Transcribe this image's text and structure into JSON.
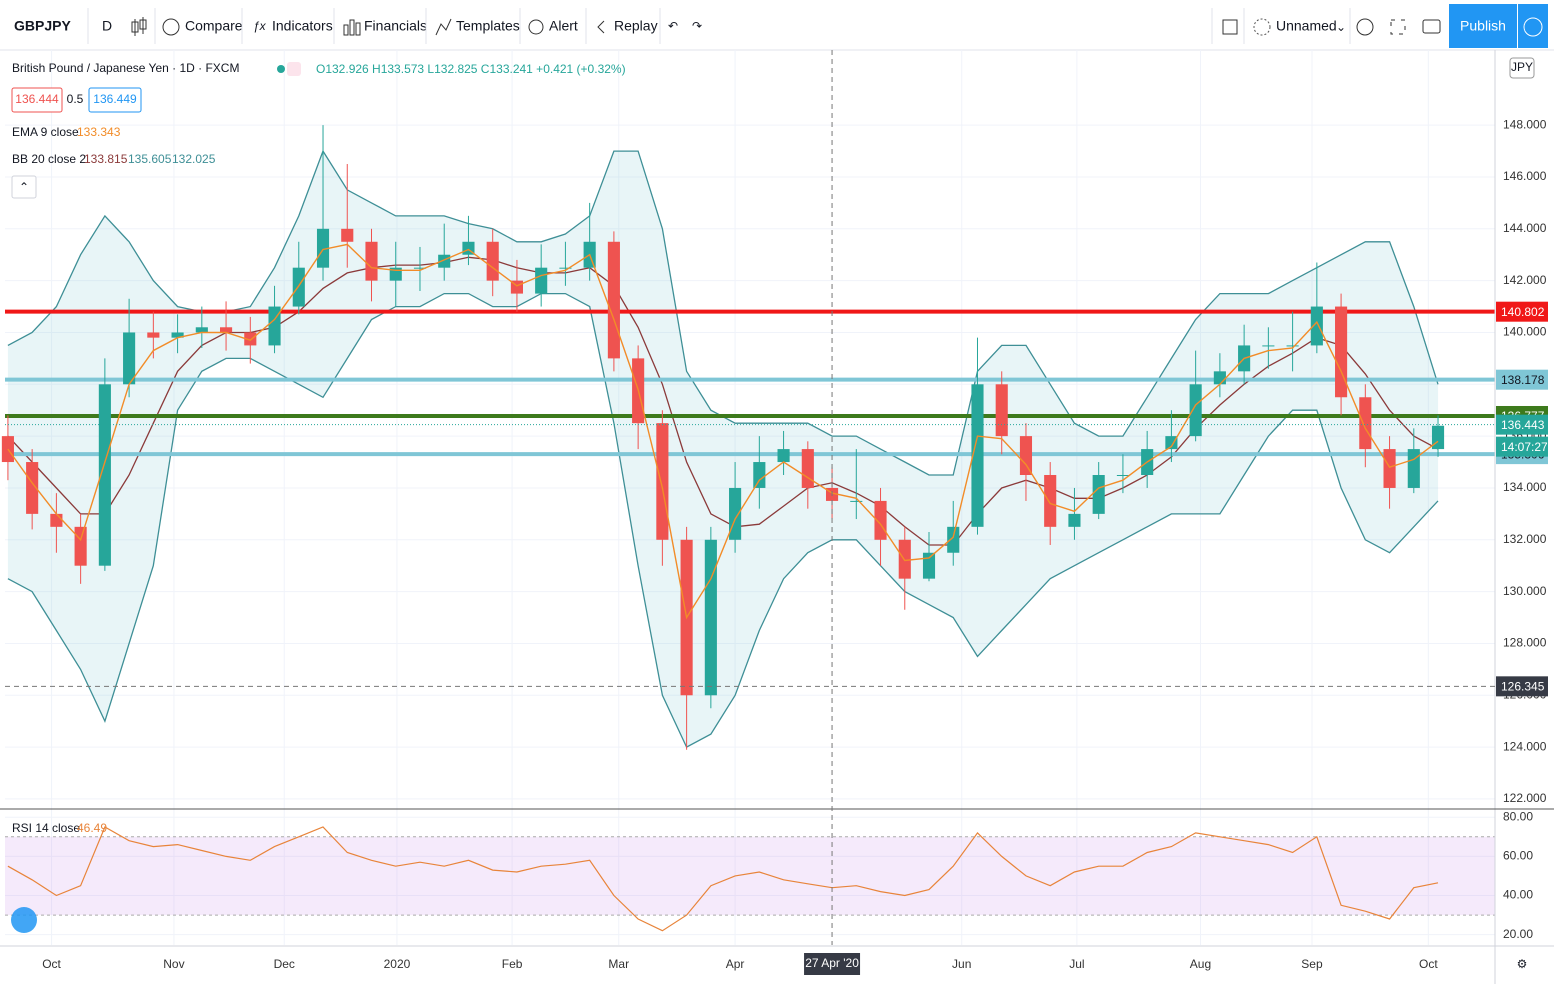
{
  "toolbar": {
    "symbol": "GBPJPY",
    "interval": "D",
    "compare": "Compare",
    "indicators": "Indicators",
    "financials": "Financials",
    "templates": "Templates",
    "alert": "Alert",
    "replay": "Replay",
    "layout_name": "Unnamed",
    "publish": "Publish"
  },
  "legend": {
    "title": "British Pound / Japanese Yen · 1D · FXCM",
    "ohlc": "O132.926 H133.573 L132.825 C133.241 +0.421 (+0.32%)",
    "sell": "136.444",
    "spread": "0.5",
    "buy": "136.449",
    "ema_value": "133.343",
    "bb_values": [
      "133.815",
      "135.605",
      "132.025"
    ]
  },
  "chart_data": [
    {
      "type": "candlestick",
      "currency": "JPY",
      "up_color": "#26a69a",
      "down_color": "#ef5350",
      "xlim": [
        -0.12,
        61.35
      ],
      "xticks": [
        {
          "value": 1.8,
          "label": "Oct"
        },
        {
          "value": 6.85,
          "label": "Nov"
        },
        {
          "value": 11.4,
          "label": "Dec"
        },
        {
          "value": 16.05,
          "label": "2020"
        },
        {
          "value": 20.8,
          "label": "Feb"
        },
        {
          "value": 25.2,
          "label": "Mar"
        },
        {
          "value": 30.0,
          "label": "Apr"
        },
        {
          "value": 39.35,
          "label": "Jun"
        },
        {
          "value": 44.1,
          "label": "Jul"
        },
        {
          "value": 49.2,
          "label": "Aug"
        },
        {
          "value": 53.8,
          "label": "Sep"
        },
        {
          "value": 58.6,
          "label": "Oct"
        }
      ],
      "ylim": [
        121.65,
        150.9
      ],
      "yticks": [
        {
          "value": 122,
          "label": "122.000"
        },
        {
          "value": 124,
          "label": "124.000"
        },
        {
          "value": 126,
          "label": "126.000"
        },
        {
          "value": 128,
          "label": "128.000"
        },
        {
          "value": 130,
          "label": "130.000"
        },
        {
          "value": 132,
          "label": "132.000"
        },
        {
          "value": 134,
          "label": "134.000"
        },
        {
          "value": 136,
          "label": "136.000"
        },
        {
          "value": 138,
          "label": "138.000"
        },
        {
          "value": 140,
          "label": "140.000"
        },
        {
          "value": 142,
          "label": "142.000"
        },
        {
          "value": 144,
          "label": "144.000"
        },
        {
          "value": 146,
          "label": "146.000"
        },
        {
          "value": 148,
          "label": "148.000"
        }
      ],
      "open": [
        136,
        135,
        133,
        132.5,
        131,
        138,
        140,
        139.8,
        140,
        140.2,
        140,
        139.5,
        141,
        142.5,
        144,
        143.5,
        142,
        142.5,
        142.5,
        143,
        143.5,
        142,
        141.5,
        142.5,
        142.5,
        143.5,
        139,
        136.5,
        132,
        126,
        132,
        134,
        135,
        135.5,
        134,
        133.5,
        133.5,
        132,
        130.5,
        131.5,
        132.5,
        138,
        136,
        134.5,
        132.5,
        133,
        134.5,
        134.5,
        135.5,
        136,
        138,
        138.5,
        139.5,
        139.5,
        139.5,
        141,
        137.5,
        135.5,
        134,
        135.5
      ],
      "high": [
        136.8,
        135.5,
        133.8,
        133,
        139,
        141.3,
        140.8,
        140.7,
        141,
        141.2,
        140.6,
        141.8,
        143.5,
        148,
        146.5,
        144,
        143.5,
        143.3,
        144.2,
        144.5,
        144,
        142.8,
        143.4,
        143.5,
        145,
        143.9,
        139.5,
        137,
        132.5,
        132.5,
        135,
        136,
        136.2,
        135.8,
        134.8,
        135.5,
        134,
        132.5,
        132.3,
        133.5,
        139.8,
        138.5,
        136.5,
        135,
        134,
        135,
        135.3,
        136.2,
        137,
        139.3,
        139.2,
        140.3,
        140.2,
        140.8,
        142.7,
        141.5,
        138,
        136,
        136.3,
        136.8
      ],
      "low": [
        134.3,
        132.4,
        131.5,
        130.3,
        130.8,
        137.5,
        139,
        139.2,
        139.4,
        139.3,
        138.8,
        139.2,
        140.7,
        142,
        142.5,
        141.2,
        141,
        141.6,
        142,
        142.6,
        141.4,
        140.8,
        141,
        141.8,
        142,
        138.5,
        135.5,
        131,
        123.9,
        125.5,
        131.5,
        133.2,
        134.5,
        133.2,
        132.8,
        132.8,
        131,
        129.3,
        130.4,
        131,
        132.2,
        135.3,
        133.5,
        131.8,
        132,
        132.8,
        133.8,
        134,
        135,
        135.8,
        137.5,
        138,
        138.6,
        138.5,
        139.2,
        136.8,
        134.8,
        133.2,
        133.8,
        135.2
      ],
      "close": [
        135,
        133,
        132.5,
        131,
        138,
        140,
        139.8,
        140,
        140.2,
        140,
        139.5,
        141,
        142.5,
        144,
        143.5,
        142,
        142.5,
        142.5,
        143,
        143.5,
        142,
        141.5,
        142.5,
        142.5,
        143.5,
        139,
        136.5,
        132,
        126,
        132,
        134,
        135,
        135.5,
        134,
        133.5,
        133.5,
        132,
        130.5,
        131.5,
        132.5,
        138,
        136,
        134.5,
        132.5,
        133,
        134.5,
        134.5,
        135.5,
        136,
        138,
        138.5,
        139.5,
        139.5,
        139.5,
        141,
        137.5,
        135.5,
        134,
        135.5,
        136.4
      ],
      "series": [
        {
          "name": "EMA 9 close",
          "color": "#f28c28",
          "values": [
            135.5,
            134.2,
            133,
            132,
            135,
            138,
            139.3,
            139.8,
            140,
            140,
            139.7,
            140.5,
            141.8,
            143.2,
            143.4,
            142.5,
            142.4,
            142.4,
            142.8,
            143.2,
            142.5,
            141.8,
            142.2,
            142.4,
            143,
            140.5,
            137.8,
            134,
            129,
            130.5,
            132.8,
            134.3,
            135,
            134.4,
            133.8,
            133.6,
            132.6,
            131.2,
            131.3,
            132.1,
            136,
            135.9,
            134.9,
            133.4,
            133.1,
            134,
            134.3,
            135,
            135.6,
            137.2,
            138,
            139,
            139.3,
            139.4,
            140.4,
            138.5,
            136.3,
            134.8,
            135.1,
            135.8
          ]
        }
      ],
      "bb": {
        "name": "BB 20 close 2",
        "color": "#3e8f96",
        "mid_color": "#8b3a3a",
        "fill": "rgba(126,200,210,0.18)",
        "upper": [
          139.5,
          140,
          141,
          143,
          144.5,
          143.5,
          142,
          141,
          140.8,
          140.8,
          141,
          142.5,
          144.5,
          147,
          145.5,
          145,
          144.5,
          144.5,
          144.5,
          144.2,
          144,
          143.5,
          143.5,
          143.8,
          144.5,
          147,
          147,
          144,
          138.5,
          137,
          136.5,
          136.5,
          136.5,
          136.5,
          136,
          136,
          135.5,
          135,
          134.5,
          134.5,
          138.5,
          139.5,
          139.5,
          138,
          136.5,
          136,
          136,
          137.5,
          139,
          140.5,
          141.5,
          141.5,
          141.5,
          142,
          142.5,
          143,
          143.5,
          143.5,
          141,
          138
        ],
        "middle": [
          136,
          135,
          134,
          133,
          133,
          134.5,
          136.5,
          138.5,
          139.5,
          140,
          140,
          140.2,
          140.8,
          141.7,
          142.3,
          142.5,
          142.6,
          142.6,
          142.7,
          142.9,
          142.8,
          142.5,
          142.3,
          142.3,
          142.5,
          141.8,
          140.2,
          138,
          135,
          133,
          132.5,
          132.6,
          133.3,
          134,
          134.2,
          133.8,
          133.3,
          132.5,
          131.8,
          131.8,
          133,
          134,
          134.3,
          134,
          133.6,
          133.6,
          134,
          134.5,
          135.2,
          136.3,
          137.2,
          138,
          138.7,
          139.2,
          139.8,
          139.5,
          138.4,
          137,
          136,
          135.5
        ],
        "lower": [
          130.5,
          130,
          128.5,
          127,
          125,
          128,
          131,
          137,
          138.5,
          139,
          139,
          138.5,
          138,
          137.5,
          139,
          140.5,
          141,
          141,
          141.5,
          141.5,
          141,
          141,
          141.5,
          141.5,
          141,
          136.5,
          131,
          126,
          124,
          124.5,
          126,
          128.5,
          130.5,
          131.5,
          132,
          132,
          131,
          130,
          129.5,
          129,
          127.5,
          128.5,
          129.5,
          130.5,
          131,
          131.5,
          132,
          132.5,
          133,
          133,
          133,
          134.5,
          136,
          137,
          137,
          134,
          132,
          131.5,
          132.5,
          133.5
        ]
      },
      "levels": [
        {
          "value": 140.802,
          "color": "#f01818",
          "text_color": "#ffffff"
        },
        {
          "value": 138.178,
          "color": "#7fc6d6",
          "text_color": "#131722"
        },
        {
          "value": 136.777,
          "color": "#3d7a1c",
          "text_color": "#ffffff"
        },
        {
          "value": 135.306,
          "color": "#7fc6d6",
          "text_color": "#131722"
        }
      ],
      "last_price": 136.443,
      "countdown": "14:07:27",
      "crosshair": {
        "x": 34,
        "label": "27 Apr '20",
        "price": 126.345
      }
    },
    {
      "type": "line",
      "xlim": [
        -0.12,
        61.35
      ],
      "ylim": [
        14.7,
        83.7
      ],
      "yticks": [
        {
          "value": 20,
          "label": "20.00"
        },
        {
          "value": 40,
          "label": "40.00"
        },
        {
          "value": 60,
          "label": "60.00"
        },
        {
          "value": 80,
          "label": "80.00"
        }
      ],
      "overbought": 70,
      "oversold": 30,
      "band_color": "rgba(200,140,235,0.18)",
      "series": [
        {
          "name": "RSI 14 close",
          "color": "#e8843a",
          "values": [
            55,
            48,
            40,
            45,
            75,
            68,
            65,
            66,
            63,
            60,
            58,
            65,
            70,
            75,
            62,
            58,
            55,
            57,
            55,
            58,
            53,
            52,
            55,
            56,
            58,
            40,
            28,
            22,
            30,
            45,
            50,
            52,
            48,
            46,
            44,
            45,
            42,
            40,
            43,
            55,
            72,
            60,
            50,
            45,
            52,
            55,
            55,
            62,
            65,
            72,
            70,
            68,
            66,
            62,
            70,
            35,
            32,
            28,
            44,
            46.49
          ]
        }
      ]
    }
  ]
}
